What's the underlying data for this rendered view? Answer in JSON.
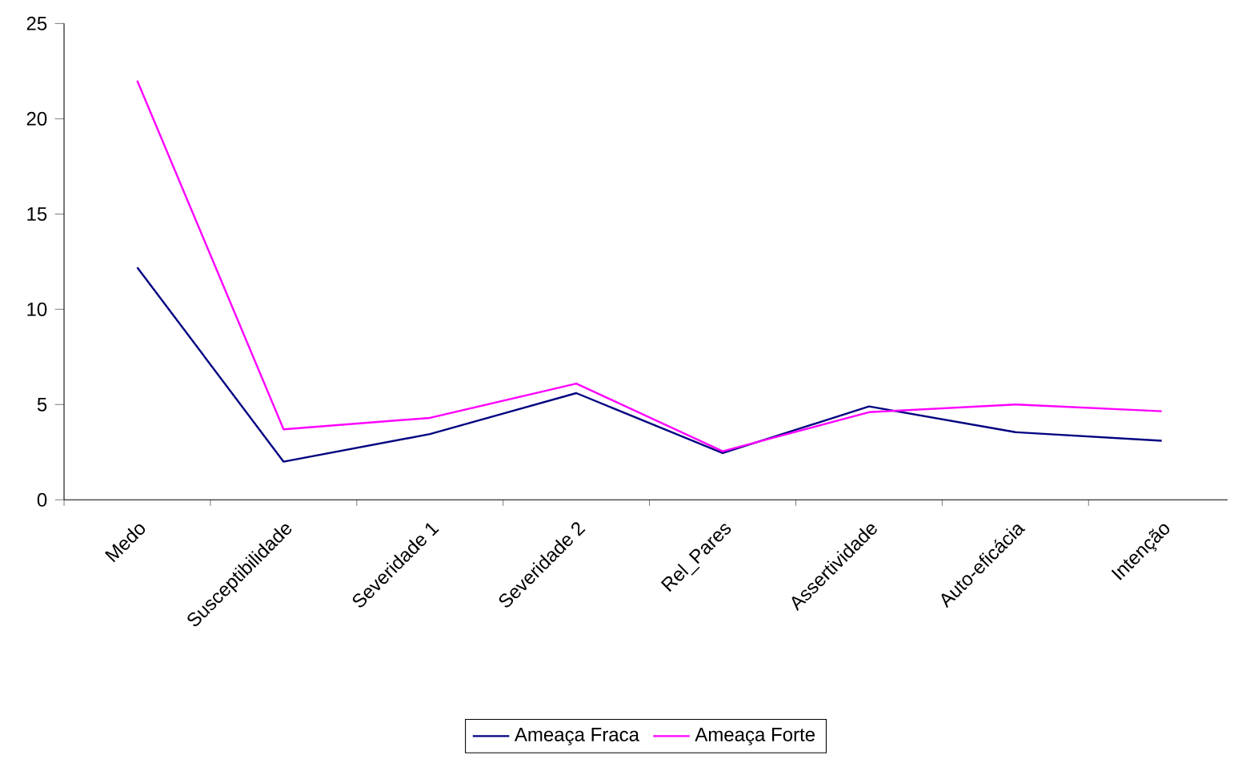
{
  "chart_data": {
    "type": "line",
    "categories": [
      "Medo",
      "Susceptibilidade",
      "Severidade 1",
      "Severidade 2",
      "Rel_Pares",
      "Assertividade",
      "Auto-eficácia",
      "Intenção"
    ],
    "series": [
      {
        "name": "Ameaça Fraca",
        "color": "#000080",
        "values": [
          12.2,
          2.0,
          3.45,
          5.6,
          2.45,
          4.9,
          3.55,
          3.1
        ]
      },
      {
        "name": "Ameaça Forte",
        "color": "#ff00ff",
        "values": [
          22.0,
          3.7,
          4.3,
          6.1,
          2.55,
          4.6,
          5.0,
          4.65
        ]
      }
    ],
    "ylim": [
      0,
      25
    ],
    "yticks": [
      0,
      5,
      10,
      15,
      20,
      25
    ],
    "grid": false,
    "legend": "bottom",
    "marker": "none",
    "line_style": "solid"
  }
}
